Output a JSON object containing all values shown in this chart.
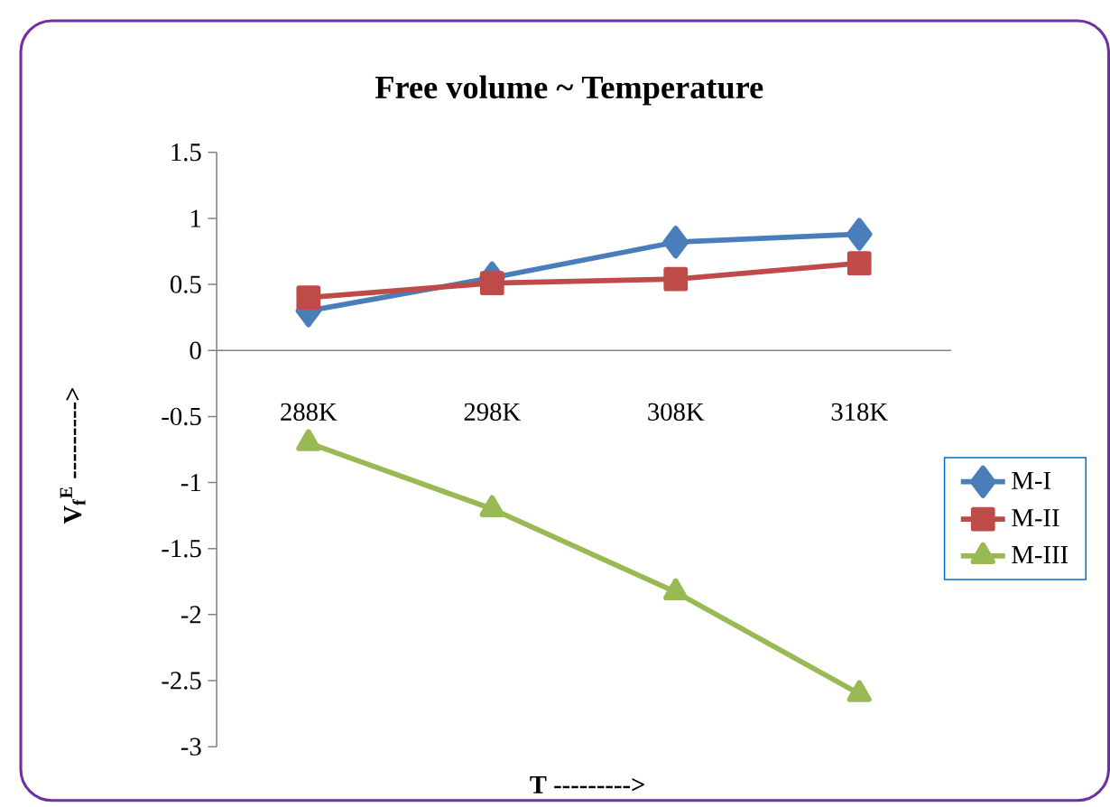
{
  "chart_data": {
    "type": "line",
    "title": "Free volume ~ Temperature",
    "xlabel": "T  --------->",
    "ylabel": "**V$_{f}$$^{E}$  --------->**",
    "categories": [
      "288K",
      "298K",
      "308K",
      "318K"
    ],
    "series": [
      {
        "name": "M-I",
        "color": "#4a7ebb",
        "marker": "diamond",
        "values": [
          0.3,
          0.55,
          0.82,
          0.88
        ]
      },
      {
        "name": "M-II",
        "color": "#be4b48",
        "marker": "square",
        "values": [
          0.4,
          0.51,
          0.54,
          0.66
        ]
      },
      {
        "name": "M-III",
        "color": "#98b954",
        "marker": "triangle",
        "values": [
          -0.7,
          -1.2,
          -1.83,
          -2.6
        ]
      }
    ],
    "ylim": [
      -3,
      1.5
    ],
    "yticks": [
      -3,
      -2.5,
      -2,
      -1.5,
      -1,
      -0.5,
      0,
      0.5,
      1,
      1.5
    ],
    "grid": false,
    "legend": "right",
    "line_style": "solid"
  }
}
